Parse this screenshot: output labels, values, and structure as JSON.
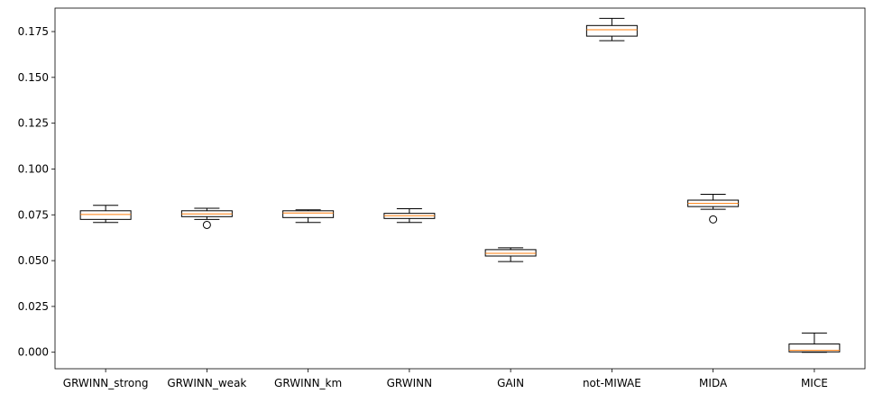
{
  "chart_data": {
    "type": "box",
    "title": "",
    "xlabel": "",
    "ylabel": "",
    "ylim": [
      -0.009,
      0.1878
    ],
    "yticks": [
      0.0,
      0.025,
      0.05,
      0.075,
      0.1,
      0.125,
      0.15,
      0.175
    ],
    "ytick_labels": [
      "0.000",
      "0.025",
      "0.050",
      "0.075",
      "0.100",
      "0.125",
      "0.150",
      "0.175"
    ],
    "grid": false,
    "categories": [
      "GRWINN_strong",
      "GRWINN_weak",
      "GRWINN_km",
      "GRWINN",
      "GAIN",
      "not-MIWAE",
      "MIDA",
      "MICE"
    ],
    "boxes": [
      {
        "whisker_low": 0.0708,
        "q1": 0.0725,
        "median": 0.0752,
        "q3": 0.0772,
        "whisker_high": 0.0802,
        "outliers": []
      },
      {
        "whisker_low": 0.0725,
        "q1": 0.074,
        "median": 0.0755,
        "q3": 0.0772,
        "whisker_high": 0.0786,
        "outliers": [
          0.0695
        ]
      },
      {
        "whisker_low": 0.0708,
        "q1": 0.0735,
        "median": 0.076,
        "q3": 0.0772,
        "whisker_high": 0.0777,
        "outliers": []
      },
      {
        "whisker_low": 0.0708,
        "q1": 0.073,
        "median": 0.0745,
        "q3": 0.0758,
        "whisker_high": 0.0783,
        "outliers": []
      },
      {
        "whisker_low": 0.0495,
        "q1": 0.0525,
        "median": 0.054,
        "q3": 0.056,
        "whisker_high": 0.057,
        "outliers": []
      },
      {
        "whisker_low": 0.17,
        "q1": 0.1725,
        "median": 0.176,
        "q3": 0.1783,
        "whisker_high": 0.1822,
        "outliers": []
      },
      {
        "whisker_low": 0.078,
        "q1": 0.0795,
        "median": 0.0812,
        "q3": 0.083,
        "whisker_high": 0.0862,
        "outliers": [
          0.0725
        ]
      },
      {
        "whisker_low": 0.0,
        "q1": 0.0002,
        "median": 0.001,
        "q3": 0.0045,
        "whisker_high": 0.0105,
        "outliers": []
      }
    ],
    "colors": {
      "box": "#000000",
      "median": "#ff7f0e",
      "background": "#ffffff"
    }
  }
}
